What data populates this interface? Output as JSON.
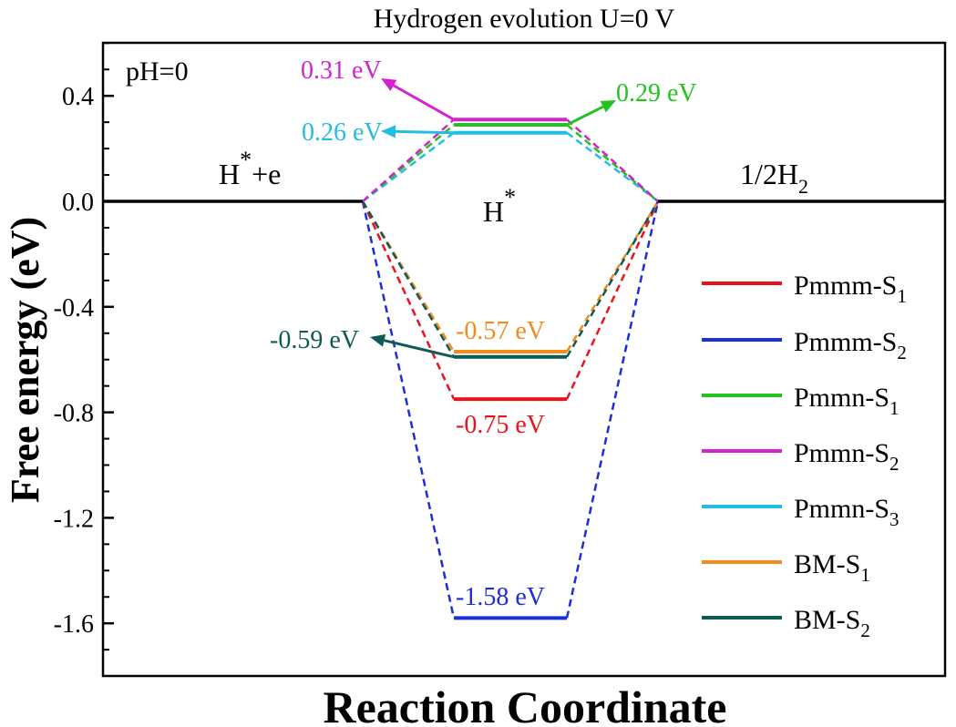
{
  "chart_data": {
    "type": "line",
    "title": "Hydrogen evolution U=0 V",
    "annotation_ph": "pH=0",
    "xlabel": "Reaction Coordinate",
    "ylabel": "Free energy (eV)",
    "ylim": [
      -1.8,
      0.6
    ],
    "yticks": [
      "0.4",
      "0.0",
      "-0.4",
      "-0.8",
      "-1.2",
      "-1.6"
    ],
    "ytick_values": [
      0.4,
      0.0,
      -0.4,
      -0.8,
      -1.2,
      -1.6
    ],
    "grid": false,
    "legend_position": "right",
    "states": [
      {
        "base": "H",
        "sup": "*",
        "rest": "+e"
      },
      {
        "base": "H",
        "sup": "*",
        "rest": ""
      },
      {
        "base": "1/2H",
        "sub": "2",
        "rest": ""
      }
    ],
    "series": [
      {
        "name": "Pmmm-S",
        "sub": "1",
        "color": "#e8141c",
        "values": [
          0.0,
          -0.75,
          0.0
        ]
      },
      {
        "name": "Pmmm-S",
        "sub": "2",
        "color": "#1c2fd4",
        "values": [
          0.0,
          -1.58,
          0.0
        ]
      },
      {
        "name": "Pmmn-S",
        "sub": "1",
        "color": "#22c21f",
        "values": [
          0.0,
          0.29,
          0.0
        ]
      },
      {
        "name": "Pmmn-S",
        "sub": "2",
        "color": "#d323d0",
        "values": [
          0.0,
          0.31,
          0.0
        ]
      },
      {
        "name": "Pmmn-S",
        "sub": "3",
        "color": "#22bde0",
        "values": [
          0.0,
          0.26,
          0.0
        ]
      },
      {
        "name": "BM-S",
        "sub": "1",
        "color": "#f28b1c",
        "values": [
          0.0,
          -0.57,
          0.0
        ]
      },
      {
        "name": "BM-S",
        "sub": "2",
        "color": "#0f5a52",
        "values": [
          0.0,
          -0.59,
          0.0
        ]
      }
    ],
    "annotations": [
      {
        "text": "0.31 eV",
        "series": 3,
        "color": "#d323d0"
      },
      {
        "text": "0.29 eV",
        "series": 2,
        "color": "#22c21f"
      },
      {
        "text": "0.26 eV",
        "series": 4,
        "color": "#22bde0"
      },
      {
        "text": "-0.57 eV",
        "series": 5,
        "color": "#f28b1c"
      },
      {
        "text": "-0.59 eV",
        "series": 6,
        "color": "#0f5a52"
      },
      {
        "text": "-0.75 eV",
        "series": 0,
        "color": "#e8141c"
      },
      {
        "text": "-1.58 eV",
        "series": 1,
        "color": "#1c2fd4"
      }
    ]
  }
}
